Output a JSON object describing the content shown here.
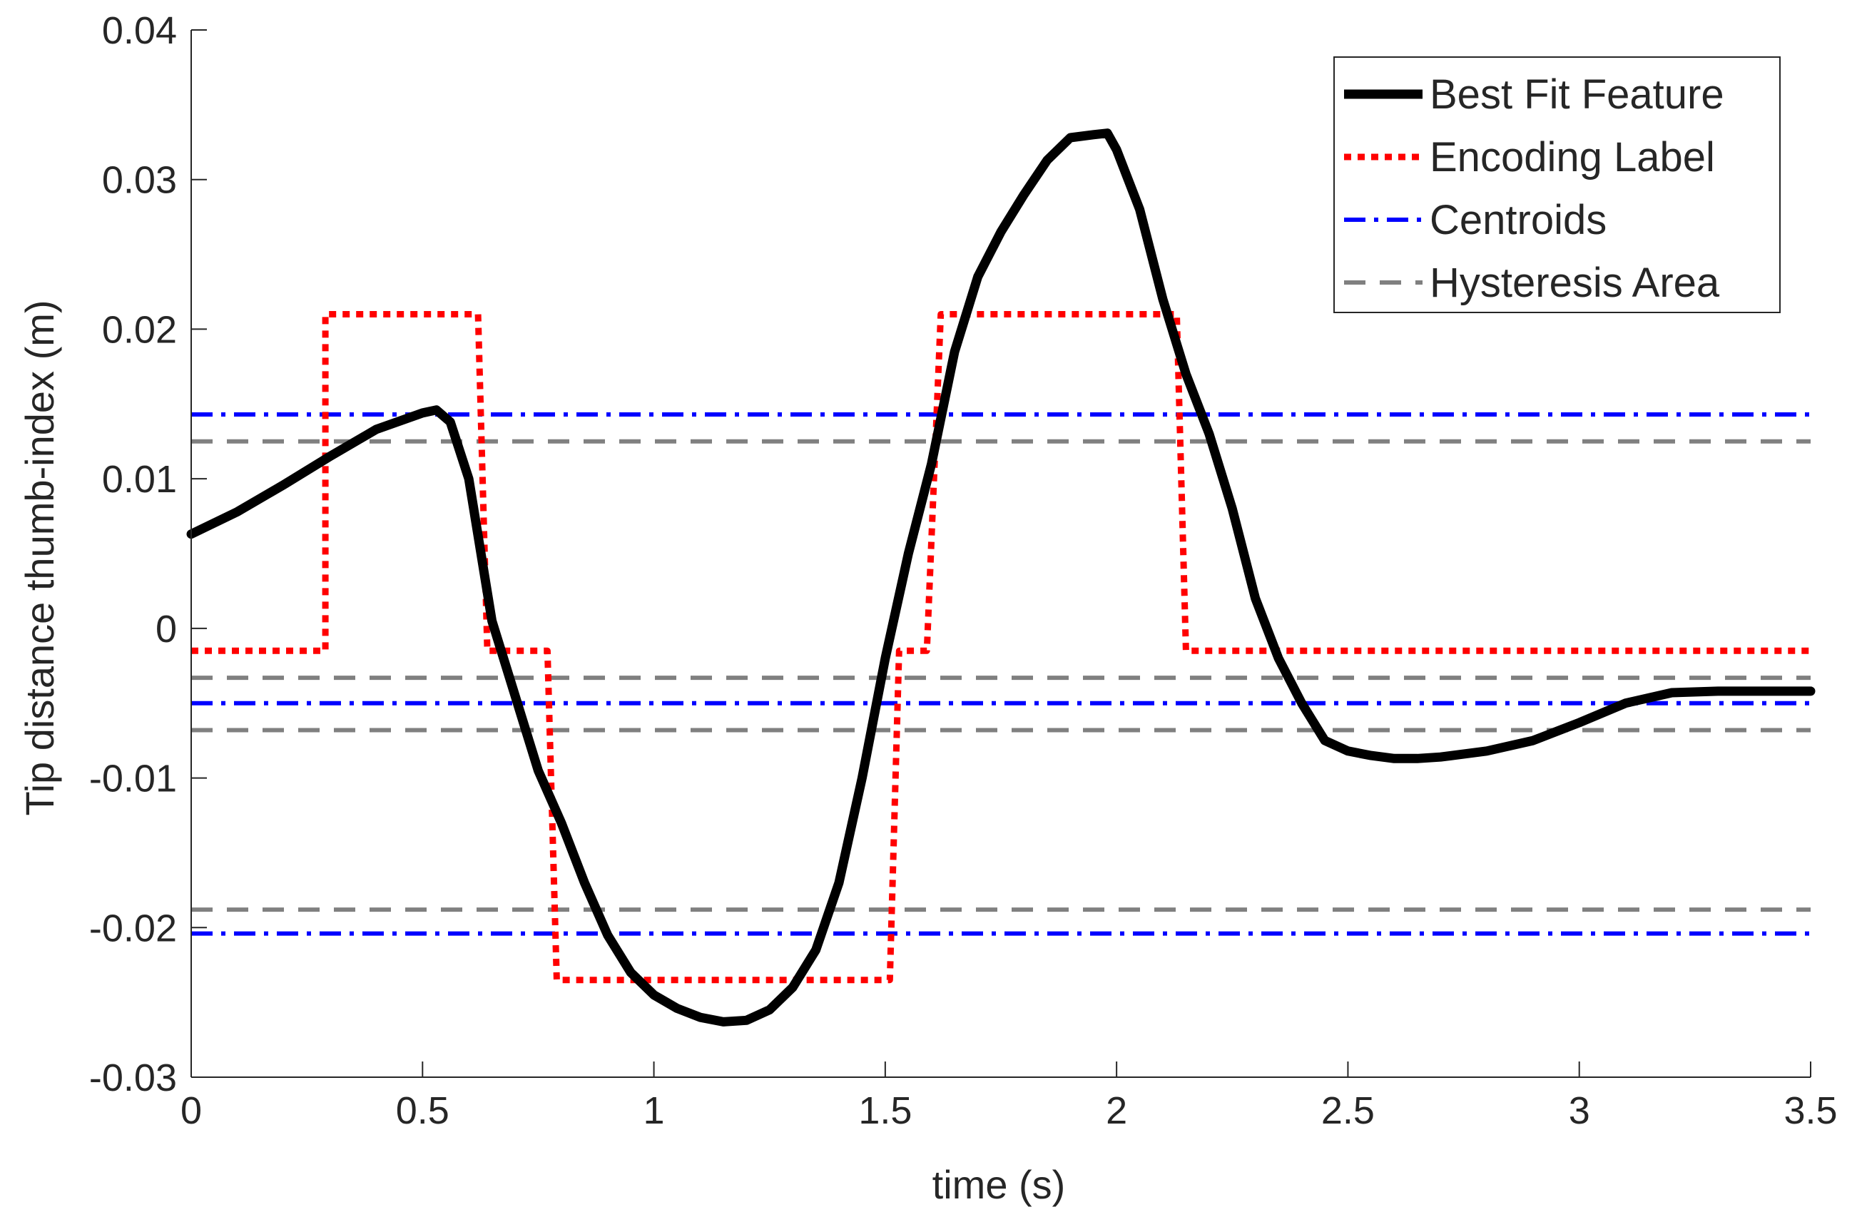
{
  "chart_data": {
    "type": "line",
    "title": "",
    "xlabel": "time (s)",
    "ylabel": "Tip distance thumb-index (m)",
    "xlim": [
      0,
      3.5
    ],
    "ylim": [
      -0.03,
      0.04
    ],
    "grid": false,
    "legend_position": "top-right",
    "xticks": [
      0,
      0.5,
      1,
      1.5,
      2,
      2.5,
      3,
      3.5
    ],
    "xtick_labels": [
      "0",
      "0.5",
      "1",
      "1.5",
      "2",
      "2.5",
      "3",
      "3.5"
    ],
    "yticks": [
      -0.03,
      -0.02,
      -0.01,
      0,
      0.01,
      0.02,
      0.03,
      0.04
    ],
    "ytick_labels": [
      "-0.03",
      "-0.02",
      "-0.01",
      "0",
      "0.01",
      "0.02",
      "0.03",
      "0.04"
    ],
    "series": [
      {
        "name": "Best Fit Feature",
        "color": "#000000",
        "style": "solid",
        "width": 13,
        "x": [
          0,
          0.1,
          0.2,
          0.3,
          0.4,
          0.5,
          0.53,
          0.56,
          0.6,
          0.65,
          0.7,
          0.75,
          0.8,
          0.85,
          0.9,
          0.95,
          1.0,
          1.05,
          1.1,
          1.15,
          1.2,
          1.25,
          1.3,
          1.35,
          1.4,
          1.45,
          1.5,
          1.55,
          1.6,
          1.65,
          1.7,
          1.75,
          1.8,
          1.85,
          1.9,
          1.95,
          1.98,
          2.0,
          2.05,
          2.1,
          2.15,
          2.2,
          2.25,
          2.3,
          2.35,
          2.4,
          2.45,
          2.5,
          2.55,
          2.6,
          2.65,
          2.7,
          2.8,
          2.9,
          3.0,
          3.1,
          3.2,
          3.3,
          3.4,
          3.5
        ],
        "y": [
          0.0063,
          0.0078,
          0.0096,
          0.0115,
          0.0133,
          0.0144,
          0.0146,
          0.0138,
          0.01,
          0.0005,
          -0.0045,
          -0.0095,
          -0.013,
          -0.017,
          -0.0205,
          -0.023,
          -0.0245,
          -0.0254,
          -0.026,
          -0.0263,
          -0.0262,
          -0.0255,
          -0.024,
          -0.0215,
          -0.017,
          -0.01,
          -0.002,
          0.005,
          0.011,
          0.0185,
          0.0235,
          0.0265,
          0.029,
          0.0313,
          0.0328,
          0.033,
          0.0331,
          0.032,
          0.028,
          0.022,
          0.017,
          0.013,
          0.008,
          0.002,
          -0.002,
          -0.005,
          -0.0075,
          -0.0082,
          -0.0085,
          -0.0087,
          -0.0087,
          -0.0086,
          -0.0082,
          -0.0075,
          -0.0063,
          -0.005,
          -0.0043,
          -0.0042,
          -0.0042,
          -0.0042
        ]
      },
      {
        "name": "Encoding Label",
        "color": "#ff0000",
        "style": "dotted",
        "width": 9,
        "x": [
          0,
          0.29,
          0.29,
          0.31,
          0.62,
          0.64,
          0.77,
          0.79,
          1.51,
          1.53,
          1.59,
          1.62,
          2.13,
          2.15,
          3.5
        ],
        "y": [
          -0.0015,
          -0.0015,
          0.021,
          0.021,
          0.021,
          -0.0015,
          -0.0015,
          -0.0235,
          -0.0235,
          -0.0015,
          -0.0015,
          0.021,
          0.021,
          -0.0015,
          -0.0015
        ]
      },
      {
        "name": "Centroids",
        "color": "#0000ff",
        "style": "dashdot",
        "width": 6,
        "levels": [
          0.0143,
          -0.005,
          -0.0204
        ]
      },
      {
        "name": "Hysteresis Area",
        "color": "#808080",
        "style": "dashed",
        "width": 6,
        "levels": [
          0.0125,
          -0.0033,
          -0.0068,
          -0.0188
        ]
      }
    ]
  }
}
